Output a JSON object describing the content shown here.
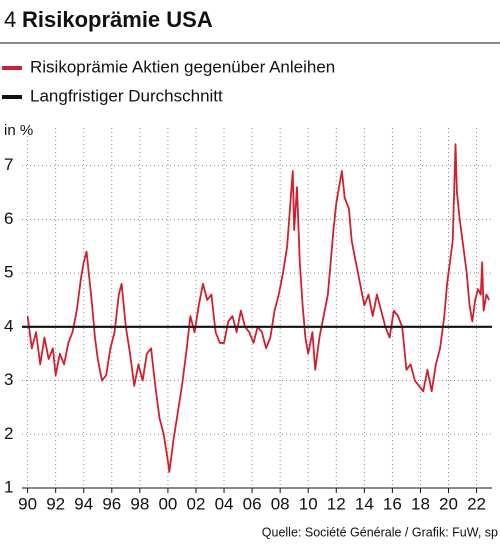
{
  "chart_data": {
    "type": "line",
    "number": "4",
    "title": "Risikoprämie USA",
    "ylabel": "in %",
    "source": "Quelle: Société Générale / Grafik: FuW, sp",
    "xlim": [
      1989.6,
      2023.1
    ],
    "xticks": [
      {
        "value": 1990,
        "label": "90"
      },
      {
        "value": 1992,
        "label": "92"
      },
      {
        "value": 1994,
        "label": "94"
      },
      {
        "value": 1996,
        "label": "96"
      },
      {
        "value": 1998,
        "label": "98"
      },
      {
        "value": 2000,
        "label": "00"
      },
      {
        "value": 2002,
        "label": "02"
      },
      {
        "value": 2004,
        "label": "04"
      },
      {
        "value": 2006,
        "label": "06"
      },
      {
        "value": 2008,
        "label": "08"
      },
      {
        "value": 2010,
        "label": "10"
      },
      {
        "value": 2012,
        "label": "12"
      },
      {
        "value": 2014,
        "label": "14"
      },
      {
        "value": 2016,
        "label": "16"
      },
      {
        "value": 2018,
        "label": "18"
      },
      {
        "value": 2020,
        "label": "20"
      },
      {
        "value": 2022,
        "label": "22"
      }
    ],
    "ylim": [
      1,
      7.7
    ],
    "yticks": [
      1,
      2,
      3,
      4,
      5,
      6,
      7
    ],
    "grid": true,
    "series": [
      {
        "name": "Risikoprämie Aktien gegenüber Anleihen",
        "color": "#d0202e",
        "x": [
          1990.0,
          1990.3,
          1990.6,
          1990.9,
          1991.2,
          1991.5,
          1991.8,
          1992.0,
          1992.3,
          1992.6,
          1992.9,
          1993.2,
          1993.5,
          1993.8,
          1994.0,
          1994.2,
          1994.4,
          1994.6,
          1994.8,
          1995.0,
          1995.3,
          1995.6,
          1995.9,
          1996.2,
          1996.5,
          1996.7,
          1997.0,
          1997.3,
          1997.6,
          1997.9,
          1998.2,
          1998.5,
          1998.8,
          1999.1,
          1999.4,
          1999.7,
          2000.0,
          2000.1,
          2000.4,
          2000.7,
          2001.0,
          2001.3,
          2001.6,
          2001.9,
          2002.2,
          2002.5,
          2002.8,
          2003.1,
          2003.4,
          2003.7,
          2004.0,
          2004.3,
          2004.6,
          2004.9,
          2005.2,
          2005.5,
          2005.8,
          2006.1,
          2006.4,
          2006.7,
          2007.0,
          2007.3,
          2007.6,
          2007.9,
          2008.2,
          2008.5,
          2008.7,
          2008.9,
          2009.0,
          2009.2,
          2009.4,
          2009.6,
          2009.8,
          2010.0,
          2010.3,
          2010.5,
          2010.8,
          2011.1,
          2011.4,
          2011.6,
          2011.8,
          2012.0,
          2012.2,
          2012.4,
          2012.6,
          2012.9,
          2013.1,
          2013.4,
          2013.7,
          2014.0,
          2014.3,
          2014.6,
          2014.9,
          2015.2,
          2015.5,
          2015.8,
          2016.1,
          2016.4,
          2016.7,
          2017.0,
          2017.3,
          2017.6,
          2017.9,
          2018.2,
          2018.5,
          2018.8,
          2019.1,
          2019.4,
          2019.7,
          2019.9,
          2020.1,
          2020.3,
          2020.5,
          2020.6,
          2020.8,
          2021.0,
          2021.3,
          2021.5,
          2021.7,
          2021.9,
          2022.1,
          2022.3,
          2022.4,
          2022.5,
          2022.7,
          2022.9
        ],
        "values": [
          4.2,
          3.6,
          3.9,
          3.3,
          3.8,
          3.4,
          3.6,
          3.1,
          3.5,
          3.3,
          3.7,
          3.9,
          4.3,
          4.9,
          5.2,
          5.4,
          4.9,
          4.4,
          3.8,
          3.4,
          3.0,
          3.1,
          3.6,
          3.9,
          4.6,
          4.8,
          4.0,
          3.5,
          2.9,
          3.3,
          3.0,
          3.5,
          3.6,
          2.9,
          2.3,
          2.0,
          1.5,
          1.3,
          1.9,
          2.4,
          2.9,
          3.5,
          4.2,
          3.9,
          4.4,
          4.8,
          4.5,
          4.6,
          3.9,
          3.7,
          3.7,
          4.1,
          4.2,
          3.9,
          4.3,
          4.0,
          3.9,
          3.7,
          4.0,
          3.9,
          3.6,
          3.8,
          4.3,
          4.6,
          5.0,
          5.5,
          6.2,
          6.9,
          5.8,
          6.6,
          5.2,
          4.4,
          3.8,
          3.5,
          3.9,
          3.2,
          3.8,
          4.2,
          4.6,
          5.2,
          5.8,
          6.3,
          6.6,
          6.9,
          6.4,
          6.2,
          5.6,
          5.2,
          4.8,
          4.4,
          4.6,
          4.2,
          4.6,
          4.3,
          4.0,
          3.8,
          4.3,
          4.2,
          4.0,
          3.2,
          3.3,
          3.0,
          2.9,
          2.8,
          3.2,
          2.8,
          3.3,
          3.6,
          4.2,
          4.8,
          5.2,
          5.6,
          7.4,
          6.5,
          6.0,
          5.6,
          5.0,
          4.4,
          4.1,
          4.5,
          4.7,
          4.6,
          5.2,
          4.3,
          4.6,
          4.5
        ]
      },
      {
        "name": "Langfristiger Durchschnitt",
        "color": "#111111",
        "x": [
          1989.6,
          2023.1
        ],
        "values": [
          4,
          4
        ]
      }
    ]
  }
}
